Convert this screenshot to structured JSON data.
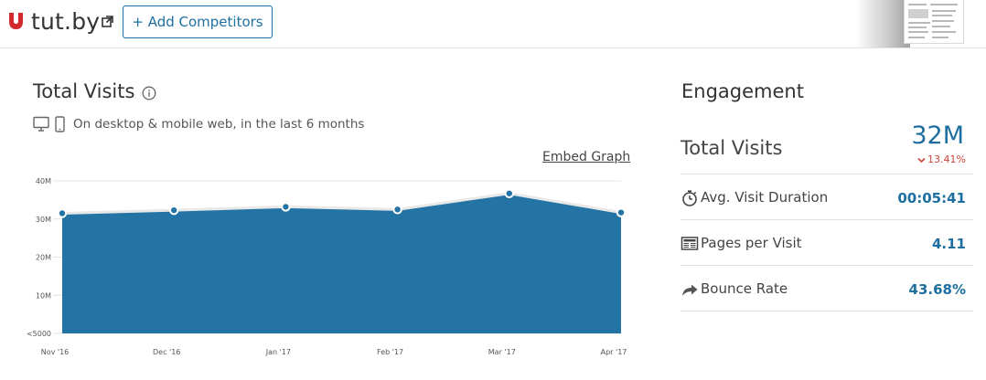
{
  "header": {
    "site_name": "tut.by",
    "add_competitors_label": "+ Add Competitors"
  },
  "total_visits": {
    "title": "Total Visits",
    "subtitle": "On desktop & mobile web, in the last 6 months",
    "embed_label": "Embed Graph"
  },
  "chart_data": {
    "type": "area",
    "categories": [
      "Nov '16",
      "Dec '16",
      "Jan '17",
      "Feb '17",
      "Mar '17",
      "Apr '17"
    ],
    "values": [
      31.5,
      32.3,
      33.2,
      32.5,
      36.7,
      31.7
    ],
    "value_unit": "M",
    "y_ticks": [
      "<5000",
      "10M",
      "20M",
      "30M",
      "40M"
    ],
    "ylim": [
      0,
      40
    ],
    "grid": true,
    "colors": {
      "fill": "#2374a5",
      "line": "#e8e8e8",
      "marker": "#2374a5"
    }
  },
  "engagement": {
    "title": "Engagement",
    "total_visits_label": "Total Visits",
    "total_visits_value": "32M",
    "change": "13.41%",
    "change_direction": "down",
    "metrics": [
      {
        "icon": "stopwatch-icon",
        "label": "Avg. Visit Duration",
        "value": "00:05:41"
      },
      {
        "icon": "pages-icon",
        "label": "Pages per Visit",
        "value": "4.11"
      },
      {
        "icon": "bounce-arrow-icon",
        "label": "Bounce Rate",
        "value": "43.68%"
      }
    ],
    "colors": {
      "value": "#1e6fa0",
      "negative": "#d0453b"
    }
  }
}
